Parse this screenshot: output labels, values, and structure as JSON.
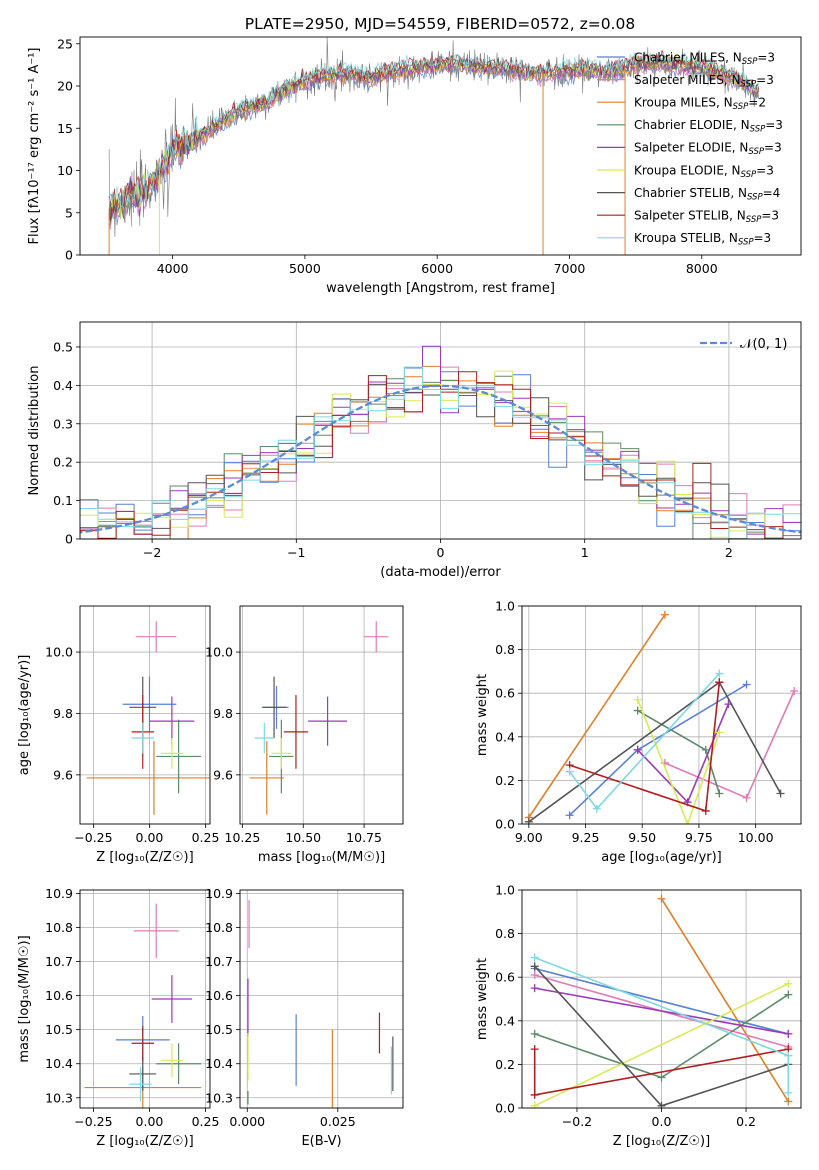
{
  "figure": {
    "title": "PLATE=2950, MJD=54559, FIBERID=0572, z=0.08"
  },
  "colors": {
    "miles_chabrier": "#5a7fd6",
    "miles_salpeter": "#e07bb8",
    "miles_kroupa": "#e07f2a",
    "elodie_chabrier": "#5d8b6a",
    "elodie_salpeter": "#9a3ab8",
    "elodie_kroupa": "#d8ea55",
    "stelib_chabrier": "#555555",
    "stelib_salpeter": "#b01e1e",
    "stelib_kroupa": "#7fd8e0",
    "normal_curve": "#5b8bd6",
    "grid": "#b0b0b0"
  },
  "chart_data": [
    {
      "id": "spectrum",
      "type": "line",
      "xlabel": "wavelength [Angstrom, rest frame]",
      "ylabel": "Flux [fλ10⁻¹⁷ erg cm⁻² s⁻¹ A⁻¹]",
      "xlim": [
        3300,
        8750
      ],
      "ylim": [
        0,
        25.8
      ],
      "xticks": [
        4000,
        5000,
        6000,
        7000,
        8000
      ],
      "yticks": [
        0,
        5,
        10,
        15,
        20,
        25
      ],
      "grid": false,
      "legend_position": "right",
      "legend": [
        {
          "label": "Chabrier MILES, N",
          "sub": "SSP",
          "tail": "=3",
          "color_key": "miles_chabrier"
        },
        {
          "label": "Salpeter MILES, N",
          "sub": "SSP",
          "tail": "=3",
          "color_key": "miles_salpeter"
        },
        {
          "label": "Kroupa MILES, N",
          "sub": "SSP",
          "tail": "=2",
          "color_key": "miles_kroupa"
        },
        {
          "label": "Chabrier ELODIE, N",
          "sub": "SSP",
          "tail": "=3",
          "color_key": "elodie_chabrier"
        },
        {
          "label": "Salpeter ELODIE, N",
          "sub": "SSP",
          "tail": "=3",
          "color_key": "elodie_salpeter"
        },
        {
          "label": "Kroupa ELODIE, N",
          "sub": "SSP",
          "tail": "=3",
          "color_key": "elodie_kroupa"
        },
        {
          "label": "Chabrier STELIB, N",
          "sub": "SSP",
          "tail": "=4",
          "color_key": "stelib_chabrier"
        },
        {
          "label": "Salpeter STELIB, N",
          "sub": "SSP",
          "tail": "=3",
          "color_key": "stelib_salpeter"
        },
        {
          "label": "Kroupa STELIB, N",
          "sub": "SSP",
          "tail": "=3",
          "color_key": "stelib_kroupa"
        }
      ],
      "continuum": [
        [
          3520,
          5.5
        ],
        [
          3650,
          6.5
        ],
        [
          3800,
          7.5
        ],
        [
          3900,
          9.5
        ],
        [
          4000,
          12.5
        ],
        [
          4150,
          13.5
        ],
        [
          4300,
          15.0
        ],
        [
          4500,
          17.0
        ],
        [
          4700,
          18.0
        ],
        [
          4900,
          20.0
        ],
        [
          5100,
          21.0
        ],
        [
          5300,
          21.5
        ],
        [
          5500,
          21.0
        ],
        [
          5700,
          21.8
        ],
        [
          5900,
          22.2
        ],
        [
          6100,
          22.6
        ],
        [
          6300,
          22.3
        ],
        [
          6500,
          22.1
        ],
        [
          6700,
          21.5
        ],
        [
          6900,
          21.6
        ],
        [
          7100,
          22.0
        ],
        [
          7300,
          21.6
        ],
        [
          7500,
          22.5
        ],
        [
          7700,
          22.7
        ],
        [
          7900,
          22.4
        ],
        [
          8100,
          21.8
        ],
        [
          8300,
          20.5
        ],
        [
          8400,
          19.5
        ]
      ]
    },
    {
      "id": "residuals",
      "type": "step-histogram",
      "xlabel": "(data-model)/error",
      "ylabel": "Normed distribution",
      "xlim": [
        -2.5,
        2.5
      ],
      "ylim": [
        0,
        0.565
      ],
      "xticks": [
        -2,
        -1,
        0,
        1,
        2
      ],
      "xtick_labels": [
        "−2",
        "−1",
        "0",
        "1",
        "2"
      ],
      "yticks": [
        0.0,
        0.1,
        0.2,
        0.3,
        0.4,
        0.5
      ],
      "grid": true,
      "legend_position": "top-right",
      "normal_label": "𝒩(0, 1)",
      "bin_width": 0.125
    },
    {
      "id": "age_vs_Z",
      "type": "errorbar",
      "xlabel": "Z [log₁₀(Z/Z☉)]",
      "ylabel": "age  [log₁₀(age/yr)]",
      "xlim": [
        -0.31,
        0.27
      ],
      "ylim": [
        9.44,
        10.15
      ],
      "xticks": [
        -0.25,
        0.0,
        0.25
      ],
      "xtick_labels": [
        "−0.25",
        "0.00",
        "0.25"
      ],
      "yticks": [
        9.6,
        9.8,
        10.0
      ],
      "ytick_labels": [
        "9.6",
        "9.8",
        "10.0"
      ],
      "grid": true,
      "points": [
        {
          "c": "miles_chabrier",
          "x": 0.0,
          "xe": 0.12,
          "y": 9.83,
          "ye": 0.09
        },
        {
          "c": "miles_salpeter",
          "x": 0.03,
          "xe": 0.09,
          "y": 10.05,
          "ye": 0.05
        },
        {
          "c": "miles_kroupa",
          "x": 0.02,
          "xe": 0.3,
          "y": 9.59,
          "ye": 0.12
        },
        {
          "c": "elodie_chabrier",
          "x": 0.13,
          "xe": 0.1,
          "y": 9.66,
          "ye": 0.12
        },
        {
          "c": "elodie_salpeter",
          "x": 0.1,
          "xe": 0.1,
          "y": 9.775,
          "ye": 0.08
        },
        {
          "c": "elodie_kroupa",
          "x": 0.1,
          "xe": 0.05,
          "y": 9.67,
          "ye": 0.05
        },
        {
          "c": "stelib_chabrier",
          "x": -0.03,
          "xe": 0.06,
          "y": 9.82,
          "ye": 0.1
        },
        {
          "c": "stelib_salpeter",
          "x": -0.03,
          "xe": 0.05,
          "y": 9.74,
          "ye": 0.12
        },
        {
          "c": "stelib_kroupa",
          "x": -0.03,
          "xe": 0.05,
          "y": 9.72,
          "ye": 0.05
        }
      ]
    },
    {
      "id": "age_vs_mass",
      "type": "errorbar",
      "xlabel": "mass [log₁₀(M/M☉)]",
      "ylabel": "",
      "xlim": [
        10.24,
        10.91
      ],
      "ylim": [
        9.44,
        10.15
      ],
      "xticks": [
        10.25,
        10.5,
        10.75
      ],
      "xtick_labels": [
        "10.25",
        "10.50",
        "10.75"
      ],
      "yticks": [
        9.6,
        9.8,
        10.0
      ],
      "ytick_labels": [
        "9.6",
        "9.8",
        "10.0"
      ],
      "grid": true,
      "points": [
        {
          "c": "miles_chabrier",
          "x": 10.39,
          "xe": 0.05,
          "y": 9.82,
          "ye": 0.07
        },
        {
          "c": "miles_salpeter",
          "x": 10.8,
          "xe": 0.05,
          "y": 10.05,
          "ye": 0.05
        },
        {
          "c": "miles_kroupa",
          "x": 10.35,
          "xe": 0.07,
          "y": 9.59,
          "ye": 0.12
        },
        {
          "c": "elodie_chabrier",
          "x": 10.41,
          "xe": 0.05,
          "y": 9.66,
          "ye": 0.12
        },
        {
          "c": "elodie_salpeter",
          "x": 10.6,
          "xe": 0.08,
          "y": 9.775,
          "ye": 0.08
        },
        {
          "c": "elodie_kroupa",
          "x": 10.41,
          "xe": 0.04,
          "y": 9.67,
          "ye": 0.05
        },
        {
          "c": "stelib_chabrier",
          "x": 10.38,
          "xe": 0.05,
          "y": 9.82,
          "ye": 0.1
        },
        {
          "c": "stelib_salpeter",
          "x": 10.47,
          "xe": 0.05,
          "y": 9.74,
          "ye": 0.12
        },
        {
          "c": "stelib_kroupa",
          "x": 10.34,
          "xe": 0.04,
          "y": 9.72,
          "ye": 0.05
        }
      ]
    },
    {
      "id": "mass_vs_Z",
      "type": "errorbar",
      "xlabel": "Z [log₁₀(Z/Z☉)]",
      "ylabel": "mass [log₁₀(M/M☉)]",
      "xlim": [
        -0.31,
        0.27
      ],
      "ylim": [
        10.27,
        10.91
      ],
      "xticks": [
        -0.25,
        0.0,
        0.25
      ],
      "xtick_labels": [
        "−0.25",
        "0.00",
        "0.25"
      ],
      "yticks": [
        10.3,
        10.4,
        10.5,
        10.6,
        10.7,
        10.8,
        10.9
      ],
      "ytick_labels": [
        "10.3",
        "10.4",
        "10.5",
        "10.6",
        "10.7",
        "10.8",
        "10.9"
      ],
      "grid": true,
      "points": [
        {
          "c": "miles_chabrier",
          "x": -0.03,
          "xe": 0.12,
          "y": 10.47,
          "ye": 0.07
        },
        {
          "c": "miles_salpeter",
          "x": 0.03,
          "xe": 0.1,
          "y": 10.79,
          "ye": 0.08
        },
        {
          "c": "miles_kroupa",
          "x": -0.03,
          "xe": 0.26,
          "y": 10.33,
          "ye": 0.06
        },
        {
          "c": "elodie_chabrier",
          "x": 0.13,
          "xe": 0.1,
          "y": 10.4,
          "ye": 0.06
        },
        {
          "c": "elodie_salpeter",
          "x": 0.1,
          "xe": 0.09,
          "y": 10.59,
          "ye": 0.07
        },
        {
          "c": "elodie_kroupa",
          "x": 0.1,
          "xe": 0.05,
          "y": 10.41,
          "ye": 0.05
        },
        {
          "c": "stelib_chabrier",
          "x": -0.03,
          "xe": 0.06,
          "y": 10.37,
          "ye": 0.05
        },
        {
          "c": "stelib_salpeter",
          "x": -0.03,
          "xe": 0.05,
          "y": 10.46,
          "ye": 0.05
        },
        {
          "c": "stelib_kroupa",
          "x": -0.04,
          "xe": 0.05,
          "y": 10.34,
          "ye": 0.05
        }
      ]
    },
    {
      "id": "mass_vs_EBV",
      "type": "errorbar",
      "xlabel": "E(B-V)",
      "ylabel": "",
      "xlim": [
        -0.002,
        0.043
      ],
      "ylim": [
        10.27,
        10.91
      ],
      "xticks": [
        0.0,
        0.025
      ],
      "xtick_labels": [
        "0.000",
        "0.025"
      ],
      "yticks": [
        10.3,
        10.4,
        10.5,
        10.6,
        10.7,
        10.8,
        10.9
      ],
      "ytick_labels": [
        "10.3",
        "10.4",
        "10.5",
        "10.6",
        "10.7",
        "10.8",
        "10.9"
      ],
      "grid": true,
      "points": [
        {
          "c": "miles_chabrier",
          "x": 0.0135,
          "xe": 0,
          "y": 10.44,
          "ye": 0.105
        },
        {
          "c": "miles_salpeter",
          "x": 0.0005,
          "xe": 0,
          "y": 10.81,
          "ye": 0.07
        },
        {
          "c": "miles_kroupa",
          "x": 0.0235,
          "xe": 0,
          "y": 10.37,
          "ye": 0.13
        },
        {
          "c": "elodie_chabrier",
          "x": 0.0002,
          "xe": 0,
          "y": 10.3,
          "ye": 0.02
        },
        {
          "c": "elodie_salpeter",
          "x": 0.0002,
          "xe": 0,
          "y": 10.565,
          "ye": 0.085
        },
        {
          "c": "elodie_kroupa",
          "x": 0.0002,
          "xe": 0,
          "y": 10.42,
          "ye": 0.07
        },
        {
          "c": "stelib_chabrier",
          "x": 0.0402,
          "xe": 0,
          "y": 10.4,
          "ye": 0.08
        },
        {
          "c": "stelib_salpeter",
          "x": 0.0365,
          "xe": 0,
          "y": 10.49,
          "ye": 0.06
        },
        {
          "c": "stelib_kroupa",
          "x": 0.0398,
          "xe": 0,
          "y": 10.38,
          "ye": 0.07
        }
      ]
    },
    {
      "id": "weight_vs_age",
      "type": "line",
      "xlabel": "age  [log₁₀(age/yr)]",
      "ylabel": "mass weight",
      "xlim": [
        8.97,
        10.2
      ],
      "ylim": [
        0,
        1.0
      ],
      "xticks": [
        9.0,
        9.25,
        9.5,
        9.75,
        10.0
      ],
      "xtick_labels": [
        "9.00",
        "9.25",
        "9.50",
        "9.75",
        "10.00"
      ],
      "yticks": [
        0.0,
        0.2,
        0.4,
        0.6,
        0.8,
        1.0
      ],
      "ytick_labels": [
        "0.0",
        "0.2",
        "0.4",
        "0.6",
        "0.8",
        "1.0"
      ],
      "grid": true,
      "series": [
        {
          "c": "miles_kroupa",
          "x": [
            9.0,
            9.6
          ],
          "y": [
            0.03,
            0.96
          ]
        },
        {
          "c": "miles_chabrier",
          "x": [
            9.18,
            9.48,
            9.96
          ],
          "y": [
            0.04,
            0.34,
            0.64
          ]
        },
        {
          "c": "miles_salpeter",
          "x": [
            9.6,
            9.96,
            10.17
          ],
          "y": [
            0.28,
            0.12,
            0.61
          ]
        },
        {
          "c": "elodie_chabrier",
          "x": [
            9.48,
            9.78,
            9.84
          ],
          "y": [
            0.52,
            0.34,
            0.14
          ]
        },
        {
          "c": "elodie_salpeter",
          "x": [
            9.48,
            9.7,
            9.88
          ],
          "y": [
            0.34,
            0.1,
            0.55
          ]
        },
        {
          "c": "elodie_kroupa",
          "x": [
            9.48,
            9.7,
            9.84
          ],
          "y": [
            0.57,
            0.0,
            0.42
          ]
        },
        {
          "c": "stelib_chabrier",
          "x": [
            9.0,
            9.84,
            10.11
          ],
          "y": [
            0.01,
            0.65,
            0.14
          ]
        },
        {
          "c": "stelib_salpeter",
          "x": [
            9.18,
            9.78,
            9.84
          ],
          "y": [
            0.27,
            0.06,
            0.65
          ]
        },
        {
          "c": "stelib_kroupa",
          "x": [
            9.18,
            9.3,
            9.84
          ],
          "y": [
            0.24,
            0.07,
            0.69
          ]
        }
      ]
    },
    {
      "id": "weight_vs_Z",
      "type": "line",
      "xlabel": "Z [log₁₀(Z/Z☉)]",
      "ylabel": "mass weight",
      "xlim": [
        -0.33,
        0.33
      ],
      "ylim": [
        0,
        1.0
      ],
      "xticks": [
        -0.2,
        0.0,
        0.2
      ],
      "xtick_labels": [
        "−0.2",
        "0.0",
        "0.2"
      ],
      "yticks": [
        0.0,
        0.2,
        0.4,
        0.6,
        0.8,
        1.0
      ],
      "ytick_labels": [
        "0.0",
        "0.2",
        "0.4",
        "0.6",
        "0.8",
        "1.0"
      ],
      "grid": true,
      "series": [
        {
          "c": "miles_kroupa",
          "x": [
            0.0,
            0.3
          ],
          "y": [
            0.96,
            0.03
          ]
        },
        {
          "c": "miles_chabrier",
          "x": [
            -0.3,
            0.3
          ],
          "y": [
            0.64,
            0.34
          ]
        },
        {
          "c": "miles_salpeter",
          "x": [
            -0.3,
            0.3
          ],
          "y": [
            0.61,
            0.28
          ]
        },
        {
          "c": "elodie_chabrier",
          "x": [
            -0.3,
            0.0,
            0.3
          ],
          "y": [
            0.34,
            0.14,
            0.52
          ]
        },
        {
          "c": "elodie_salpeter",
          "x": [
            -0.3,
            0.3
          ],
          "y": [
            0.55,
            0.34
          ]
        },
        {
          "c": "elodie_kroupa",
          "x": [
            -0.3,
            0.3
          ],
          "y": [
            0.01,
            0.57
          ]
        },
        {
          "c": "stelib_chabrier",
          "x": [
            -0.3,
            0.0,
            0.3
          ],
          "y": [
            0.65,
            0.01,
            0.2
          ]
        },
        {
          "c": "stelib_salpeter",
          "x": [
            -0.3,
            -0.3,
            0.3
          ],
          "y": [
            0.27,
            0.06,
            0.27
          ]
        },
        {
          "c": "stelib_kroupa",
          "x": [
            -0.3,
            0.3,
            0.3
          ],
          "y": [
            0.69,
            0.24,
            0.07
          ]
        }
      ]
    }
  ]
}
